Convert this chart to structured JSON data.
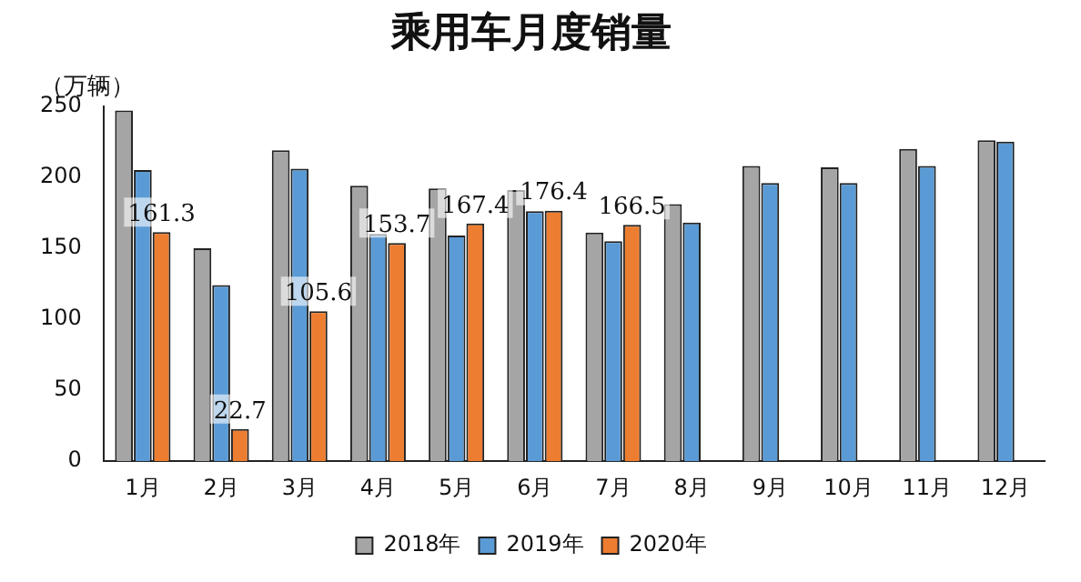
{
  "chart_data": {
    "type": "bar",
    "title": "乘用车月度销量",
    "ylabel": "（万辆）",
    "categories": [
      "1月",
      "2月",
      "3月",
      "4月",
      "5月",
      "6月",
      "7月",
      "8月",
      "9月",
      "10月",
      "11月",
      "12月"
    ],
    "series": [
      {
        "name": "2018年",
        "color": "#a5a5a5",
        "values": [
          247,
          150,
          219,
          194,
          192,
          191,
          161,
          181,
          208,
          207,
          220,
          226
        ]
      },
      {
        "name": "2019年",
        "color": "#5b9bd5",
        "values": [
          205,
          124,
          206,
          160,
          159,
          176,
          155,
          168,
          196,
          196,
          208,
          225
        ]
      },
      {
        "name": "2020年",
        "color": "#ed7d31",
        "values": [
          161.3,
          22.7,
          105.6,
          153.7,
          167.4,
          176.4,
          166.5,
          null,
          null,
          null,
          null,
          null
        ],
        "value_labels": [
          "161.3",
          "22.7",
          "105.6",
          "153.7",
          "167.4",
          "176.4",
          "166.5",
          null,
          null,
          null,
          null,
          null
        ]
      }
    ],
    "ylim": [
      0,
      250
    ],
    "yticks": [
      0,
      50,
      100,
      150,
      200,
      250
    ],
    "grid": false,
    "legend": "bottom"
  }
}
